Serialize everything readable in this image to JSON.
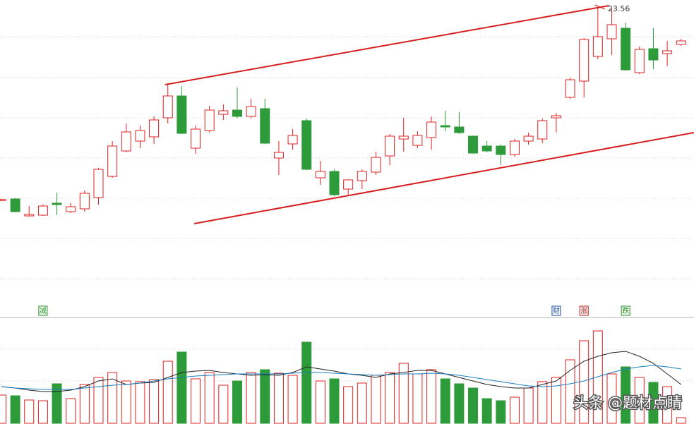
{
  "chart_data": {
    "type": "candlestick",
    "open": [
      18.08,
      18.12,
      17.64,
      17.66,
      18.0,
      17.76,
      17.84,
      18.16,
      18.76,
      19.48,
      19.76,
      19.88,
      20.42,
      21.04,
      19.56,
      20.06,
      20.52,
      20.64,
      20.46,
      20.68,
      19.28,
      19.68,
      20.34,
      18.72,
      18.9,
      18.4,
      18.64,
      18.88,
      19.34,
      19.82,
      19.64,
      19.86,
      20.2,
      20.16,
      19.9,
      19.62,
      19.62,
      19.38,
      19.76,
      19.82,
      20.42,
      21.0,
      21.46,
      22.16,
      22.66,
      22.96,
      21.7,
      22.38,
      22.24,
      22.5
    ],
    "high": [
      18.12,
      18.14,
      17.92,
      17.96,
      18.3,
      18.0,
      18.36,
      19.0,
      19.76,
      20.26,
      20.2,
      20.46,
      21.36,
      21.32,
      20.2,
      20.76,
      20.8,
      21.28,
      20.96,
      20.96,
      19.76,
      20.1,
      20.4,
      19.2,
      18.96,
      18.68,
      18.96,
      19.46,
      19.96,
      20.42,
      20.04,
      20.46,
      20.62,
      20.58,
      19.92,
      19.76,
      19.66,
      19.82,
      20.0,
      20.4,
      20.56,
      21.56,
      22.68,
      23.56,
      23.52,
      23.12,
      22.44,
      22.96,
      22.6,
      22.66
    ],
    "low": [
      18.06,
      17.74,
      17.62,
      17.64,
      17.66,
      17.72,
      17.76,
      17.96,
      18.72,
      19.44,
      19.56,
      19.68,
      20.26,
      19.96,
      19.4,
      20.0,
      20.36,
      20.4,
      20.4,
      19.68,
      18.8,
      19.52,
      18.94,
      18.52,
      18.2,
      18.24,
      18.4,
      18.8,
      19.08,
      19.46,
      19.56,
      19.52,
      20.04,
      19.96,
      19.4,
      19.44,
      19.08,
      19.32,
      19.66,
      19.7,
      20.0,
      20.96,
      21.0,
      22.08,
      22.2,
      21.76,
      21.66,
      21.8,
      21.88,
      22.46
    ],
    "close": [
      18.1,
      17.76,
      17.68,
      17.92,
      17.96,
      17.9,
      18.28,
      18.96,
      19.62,
      20.02,
      20.06,
      20.36,
      21.04,
      19.98,
      20.1,
      20.64,
      20.62,
      20.46,
      20.74,
      19.7,
      19.44,
      19.92,
      18.96,
      18.9,
      18.24,
      18.66,
      18.9,
      19.3,
      19.9,
      19.9,
      19.92,
      20.3,
      20.16,
      20.0,
      19.42,
      19.48,
      19.38,
      19.76,
      19.9,
      20.34,
      20.48,
      21.5,
      22.64,
      22.72,
      23.06,
      21.78,
      22.36,
      22.06,
      22.32,
      22.6
    ],
    "volume": [
      40,
      39,
      33,
      32,
      56,
      35,
      55,
      65,
      72,
      60,
      59,
      62,
      88,
      101,
      63,
      72,
      54,
      60,
      72,
      76,
      71,
      68,
      115,
      60,
      63,
      52,
      57,
      68,
      72,
      85,
      70,
      76,
      63,
      56,
      50,
      35,
      32,
      37,
      50,
      59,
      65,
      90,
      117,
      131,
      70,
      80,
      65,
      58,
      52,
      8
    ],
    "ma_lines": [
      {
        "color": "#222222",
        "values": [
          52,
          50,
          47,
          45,
          45,
          47,
          52,
          60,
          63,
          55,
          57,
          58,
          65,
          72,
          74,
          75,
          72,
          70,
          68,
          69,
          68,
          72,
          80,
          77,
          74,
          70,
          68,
          65,
          70,
          72,
          75,
          75,
          70,
          65,
          60,
          55,
          52,
          50,
          50,
          55,
          60,
          75,
          88,
          95,
          100,
          102,
          95,
          85,
          70,
          55
        ]
      },
      {
        "color": "#1a7fc0",
        "values": [
          52,
          50,
          49,
          48,
          48,
          48,
          50,
          52,
          54,
          55,
          57,
          60,
          63,
          65,
          67,
          68,
          69,
          70,
          70,
          70,
          70,
          71,
          72,
          72,
          71,
          70,
          69,
          68,
          69,
          70,
          70,
          71,
          70,
          68,
          65,
          62,
          59,
          56,
          53,
          52,
          53,
          56,
          60,
          66,
          72,
          77,
          80,
          82,
          80,
          77
        ]
      }
    ],
    "up_color": "#e02020",
    "down_color": "#2e9b3a",
    "xlim": [
      -0.1,
      49.93
    ],
    "ylim": [
      14.96,
      23.76
    ],
    "yticks": [
      22.72,
      21.56,
      20.42,
      19.28,
      18.14,
      17.0,
      15.86
    ],
    "volume_ylim": [
      0,
      150
    ],
    "volume_ticks": [
      60,
      105
    ],
    "grid": true,
    "trend_lines": [
      {
        "color": "#d81e1e",
        "from": [
          11.8,
          21.36
        ],
        "to": [
          43.8,
          23.6
        ]
      },
      {
        "color": "#d81e1e",
        "from": [
          13.9,
          17.42
        ],
        "to": [
          49.93,
          20.0
        ]
      }
    ],
    "annotation": {
      "text": "23.56",
      "x": 43,
      "y": 23.56
    },
    "markers": [
      {
        "text": "减",
        "x": 3,
        "color": "#1f8f1f"
      },
      {
        "text": "财",
        "x": 40,
        "color": "#1f4fa0"
      },
      {
        "text": "涨",
        "x": 42,
        "color": "#b01818"
      },
      {
        "text": "跌",
        "x": 45,
        "color": "#1f8f1f"
      }
    ],
    "watermark": "头条 @题材点睛"
  }
}
